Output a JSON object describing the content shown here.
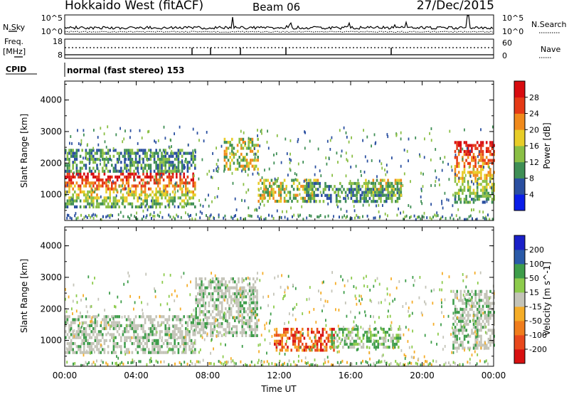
{
  "header": {
    "station": "Hokkaido West (fitACF)",
    "beam": "Beam 06",
    "date": "27/Dec/2015"
  },
  "noise_panel": {
    "left_label": "N.Sky",
    "left_ticks": [
      "10^5",
      "10^0"
    ],
    "right_ticks": [
      "10^5",
      "10^0"
    ],
    "right_label": "N.Search"
  },
  "freq_panel": {
    "left_label_1": "Freq.",
    "left_label_2": "[MHz]",
    "left_ticks": [
      "18",
      "8"
    ],
    "right_ticks": [
      "60",
      "0"
    ],
    "right_label": "Nave"
  },
  "cpid": {
    "label": "CPID",
    "value": "normal (fast stereo) 153"
  },
  "chart_data": [
    {
      "type": "heatmap",
      "quantity": "Power",
      "ylabel": "Slant Range [km]",
      "ylim": [
        180,
        4600
      ],
      "yticks": [
        "1000",
        "2000",
        "3000",
        "4000"
      ],
      "xlim_hours": [
        0,
        24
      ],
      "colorbar": {
        "label": "Power [dB]",
        "ticks": [
          "28",
          "24",
          "20",
          "16",
          "12",
          "8",
          "4"
        ],
        "colors": [
          "#0a1de8",
          "#2a4fa0",
          "#3f8f55",
          "#8abf45",
          "#e8cd28",
          "#f08a1c",
          "#e53a16",
          "#d80c10"
        ]
      },
      "regions": [
        {
          "t": [
            0.0,
            7.3
          ],
          "r": [
            650,
            1700
          ],
          "level": "high"
        },
        {
          "t": [
            0.0,
            7.3
          ],
          "r": [
            1700,
            2450
          ],
          "level": "low"
        },
        {
          "t": [
            8.9,
            10.8
          ],
          "r": [
            1800,
            2800
          ],
          "level": "mid"
        },
        {
          "t": [
            10.8,
            14.2
          ],
          "r": [
            800,
            1500
          ],
          "level": "mid"
        },
        {
          "t": [
            13.5,
            18.8
          ],
          "r": [
            800,
            1400
          ],
          "level": "low"
        },
        {
          "t": [
            16.8,
            18.8
          ],
          "r": [
            1000,
            1500
          ],
          "level": "mid"
        },
        {
          "t": [
            21.8,
            24.0
          ],
          "r": [
            800,
            2700
          ],
          "level": "high"
        }
      ]
    },
    {
      "type": "heatmap",
      "quantity": "Velocity",
      "ylabel": "Slant Range [km]",
      "ylim": [
        180,
        4600
      ],
      "yticks": [
        "1000",
        "2000",
        "3000",
        "4000"
      ],
      "xlabel": "Time UT",
      "xticks": [
        "00:00",
        "04:00",
        "08:00",
        "12:00",
        "16:00",
        "20:00",
        "00:00"
      ],
      "colorbar": {
        "label": "Velocity [m s^-1]",
        "ticks": [
          "200",
          "100",
          "50",
          "15",
          "-15",
          "-50",
          "-100",
          "-200"
        ],
        "colors": [
          "#d81010",
          "#e8481c",
          "#f07d1c",
          "#f5ad28",
          "#c4c4b8",
          "#8dcb4c",
          "#3e9d4a",
          "#2a5aa8",
          "#1a20c8"
        ]
      },
      "regions": [
        {
          "t": [
            0.0,
            7.3
          ],
          "r": [
            650,
            1800
          ],
          "v": 0
        },
        {
          "t": [
            7.3,
            10.8
          ],
          "r": [
            1200,
            3000
          ],
          "v": 0
        },
        {
          "t": [
            11.7,
            15.1
          ],
          "r": [
            700,
            1400
          ],
          "v": -80
        },
        {
          "t": [
            14.9,
            18.8
          ],
          "r": [
            800,
            1400
          ],
          "v": 30
        },
        {
          "t": [
            21.7,
            24.0
          ],
          "r": [
            800,
            2600
          ],
          "v": 0
        }
      ]
    }
  ]
}
